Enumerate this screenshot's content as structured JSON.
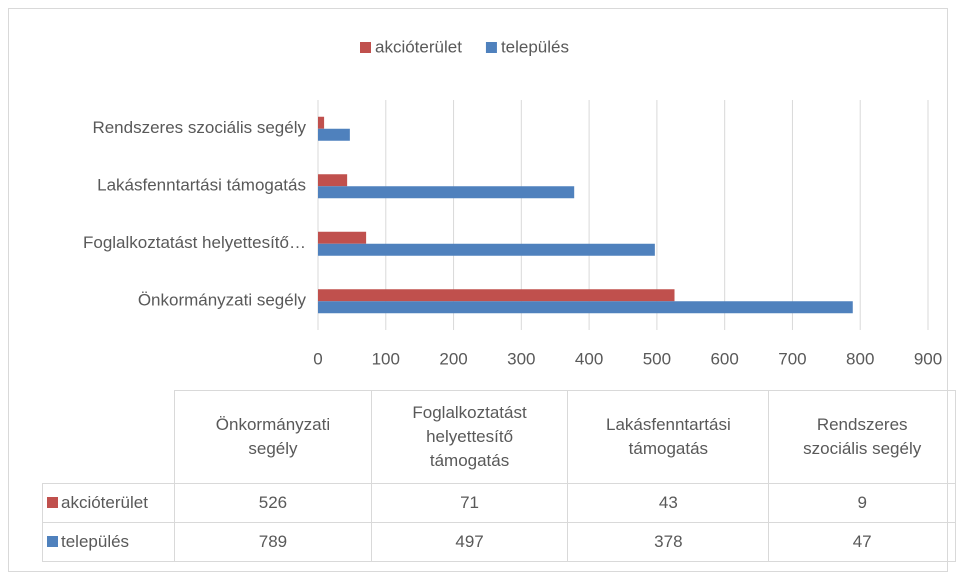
{
  "chart_data": {
    "type": "hbar",
    "categories": [
      "Önkormányzati segély",
      "Foglalkoztatást helyettesítő támogatás",
      "Lakásfenntartási támogatás",
      "Rendszeres szociális segély"
    ],
    "category_axis_labels": [
      "Önkormányzati segély",
      "Foglalkoztatást helyettesítő…",
      "Lakásfenntartási támogatás",
      "Rendszeres szociális segély"
    ],
    "series": [
      {
        "name": "akcióterület",
        "color": "#c0504d",
        "values": [
          526,
          71,
          43,
          9
        ]
      },
      {
        "name": "település",
        "color": "#4f81bd",
        "values": [
          789,
          497,
          378,
          47
        ]
      }
    ],
    "xlim": [
      0,
      900
    ],
    "xticks": [
      0,
      100,
      200,
      300,
      400,
      500,
      600,
      700,
      800,
      900
    ],
    "grid": true,
    "legend": "top",
    "data_table": true
  }
}
